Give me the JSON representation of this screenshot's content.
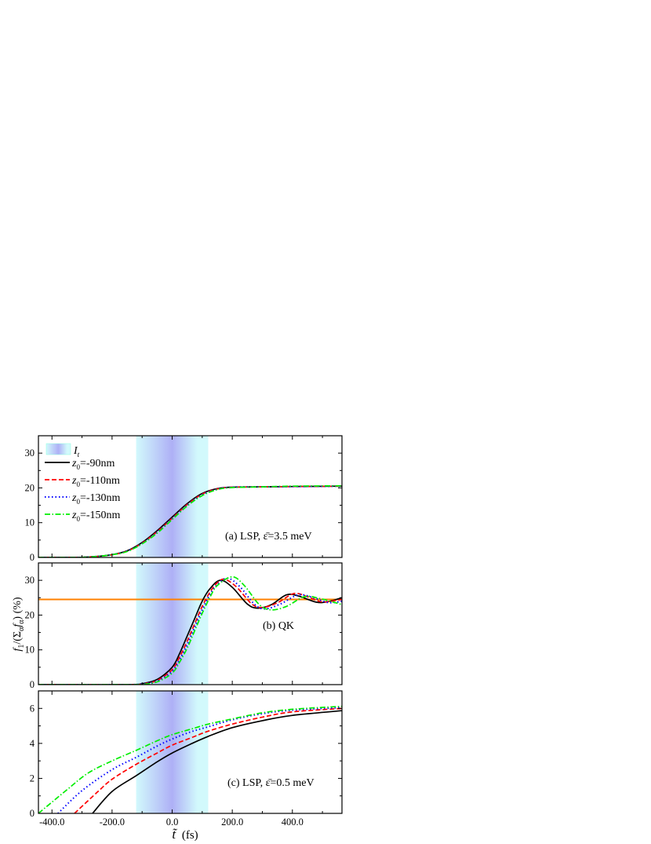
{
  "chart_data": [
    {
      "panel": "a",
      "type": "line",
      "annotation": "(a) LSP, ε̄=3.5 meV",
      "xlim": [
        -445,
        565
      ],
      "ylim": [
        0,
        35
      ],
      "yticks": [
        0,
        10,
        20,
        30
      ],
      "shaded_region": {
        "label": "I",
        "label_sub": "t",
        "from": -120,
        "to": 120,
        "colors": [
          "#d2f9fc",
          "#aeb0f6"
        ]
      },
      "legend": {
        "placement": "top-left"
      },
      "series": [
        {
          "name": "z0=-90nm",
          "name_main": "z",
          "name_sub": "0",
          "name_rest": "=-90nm",
          "color": "#000000",
          "style": "solid",
          "x": [
            -445,
            -350,
            -300,
            -250,
            -200,
            -150,
            -100,
            -50,
            0,
            50,
            100,
            150,
            200,
            300,
            400,
            565
          ],
          "y": [
            0,
            0,
            0.05,
            0.3,
            0.8,
            1.9,
            4.3,
            7.7,
            11.6,
            15.5,
            18.4,
            19.8,
            20.2,
            20.3,
            20.4,
            20.5
          ]
        },
        {
          "name": "z0=-110nm",
          "name_main": "z",
          "name_sub": "0",
          "name_rest": "=-110nm",
          "color": "#ff0000",
          "style": "dashed",
          "x": [
            -445,
            -350,
            -300,
            -250,
            -200,
            -150,
            -100,
            -50,
            0,
            50,
            100,
            150,
            200,
            300,
            400,
            565
          ],
          "y": [
            0,
            0,
            0.05,
            0.3,
            0.8,
            1.8,
            4.1,
            7.4,
            11.3,
            15.2,
            18.2,
            19.7,
            20.2,
            20.3,
            20.4,
            20.5
          ]
        },
        {
          "name": "z0=-130nm",
          "name_main": "z",
          "name_sub": "0",
          "name_rest": "=-130nm",
          "color": "#0000ff",
          "style": "dotted",
          "x": [
            -445,
            -350,
            -300,
            -250,
            -200,
            -150,
            -100,
            -50,
            0,
            50,
            100,
            150,
            200,
            300,
            400,
            565
          ],
          "y": [
            0,
            0,
            0.05,
            0.3,
            0.8,
            1.8,
            4.0,
            7.2,
            11.1,
            15.0,
            18.0,
            19.6,
            20.2,
            20.3,
            20.4,
            20.5
          ]
        },
        {
          "name": "z0=-150nm",
          "name_main": "z",
          "name_sub": "0",
          "name_rest": "=-150nm",
          "color": "#00ee00",
          "style": "dash-dot",
          "x": [
            -445,
            -350,
            -300,
            -250,
            -200,
            -150,
            -100,
            -50,
            0,
            50,
            100,
            150,
            200,
            300,
            400,
            565
          ],
          "y": [
            0,
            0,
            0.05,
            0.3,
            0.8,
            1.7,
            3.9,
            7.0,
            10.9,
            14.8,
            17.8,
            19.5,
            20.1,
            20.3,
            20.5,
            20.6
          ]
        }
      ]
    },
    {
      "panel": "b",
      "type": "line",
      "annotation": "(b) QK",
      "xlim": [
        -445,
        565
      ],
      "ylim": [
        0,
        35
      ],
      "yticks": [
        0,
        10,
        20,
        30
      ],
      "ylabel_parts": [
        "f",
        "1",
        "/(Σ",
        "α",
        "f",
        "α",
        ") (%)"
      ],
      "shaded_region": {
        "from": -120,
        "to": 120
      },
      "reference_line": {
        "y": 24.5,
        "color": "#ff8000"
      },
      "series": [
        {
          "name": "z0=-90nm",
          "color": "#000000",
          "style": "solid",
          "x": [
            -445,
            -150,
            -100,
            -50,
            0,
            25,
            50,
            75,
            100,
            125,
            160,
            200,
            250,
            285,
            330,
            380,
            420,
            480,
            520,
            565
          ],
          "y": [
            0,
            0,
            0.3,
            1.5,
            5,
            9,
            14,
            19,
            24,
            27.5,
            30,
            28,
            23.2,
            22,
            23,
            25.8,
            25.5,
            23.7,
            23.9,
            25
          ]
        },
        {
          "name": "z0=-110nm",
          "color": "#ff0000",
          "style": "dashed",
          "x": [
            -445,
            -150,
            -100,
            -50,
            0,
            25,
            50,
            75,
            100,
            125,
            150,
            175,
            215,
            265,
            300,
            350,
            405,
            450,
            500,
            565
          ],
          "y": [
            0,
            0,
            0.2,
            1.2,
            4.3,
            8,
            12.5,
            17.5,
            22.5,
            26.5,
            29.3,
            30.3,
            28,
            23.2,
            22.2,
            23.5,
            26.2,
            25.3,
            23.8,
            24.5
          ]
        },
        {
          "name": "z0=-130nm",
          "color": "#0000ff",
          "style": "dotted",
          "x": [
            -445,
            -150,
            -100,
            -50,
            0,
            25,
            50,
            75,
            100,
            125,
            150,
            185,
            225,
            275,
            310,
            360,
            420,
            470,
            520,
            565
          ],
          "y": [
            0,
            0,
            0.2,
            1,
            3.8,
            7.2,
            11.5,
            16.5,
            21.5,
            25.8,
            28.8,
            30.6,
            28.2,
            23,
            21.8,
            23.2,
            25.8,
            25,
            23.6,
            24
          ]
        },
        {
          "name": "z0=-150nm",
          "color": "#00ee00",
          "style": "dash-dot",
          "x": [
            -445,
            -150,
            -100,
            -50,
            0,
            25,
            50,
            75,
            100,
            125,
            150,
            200,
            240,
            290,
            330,
            380,
            440,
            490,
            565
          ],
          "y": [
            0,
            0,
            0.1,
            0.8,
            3.3,
            6.5,
            10.5,
            15.5,
            20.5,
            25,
            28.5,
            31,
            28.5,
            23,
            21.5,
            22.5,
            25.3,
            24.8,
            23
          ]
        }
      ]
    },
    {
      "panel": "c",
      "type": "line",
      "annotation": "(c) LSP, ε̄=0.5 meV",
      "xlim": [
        -445,
        565
      ],
      "ylim": [
        0,
        7
      ],
      "yticks": [
        0,
        2,
        4,
        6
      ],
      "xticks": [
        -400,
        -200,
        0,
        200,
        400
      ],
      "xtick_labels": [
        "-400.0",
        "-200.0",
        "0.0",
        "200.0",
        "400.0"
      ],
      "xlabel_main": "t̃",
      "xlabel_unit": "(fs)",
      "shaded_region": {
        "from": -120,
        "to": 120
      },
      "series": [
        {
          "name": "z0=-90nm",
          "color": "#000000",
          "style": "solid",
          "x": [
            -265,
            -200,
            -120,
            -50,
            0,
            60,
            120,
            200,
            300,
            400,
            565
          ],
          "y": [
            0,
            1.25,
            2.15,
            2.95,
            3.45,
            3.95,
            4.4,
            4.9,
            5.3,
            5.6,
            5.87
          ]
        },
        {
          "name": "z0=-110nm",
          "color": "#ff0000",
          "style": "dashed",
          "x": [
            -325,
            -250,
            -200,
            -120,
            -50,
            0,
            60,
            120,
            200,
            300,
            400,
            565
          ],
          "y": [
            0,
            1.2,
            1.95,
            2.8,
            3.45,
            3.9,
            4.3,
            4.7,
            5.1,
            5.5,
            5.8,
            6.0
          ]
        },
        {
          "name": "z0=-130nm",
          "color": "#0000ff",
          "style": "dotted",
          "x": [
            -380,
            -300,
            -200,
            -120,
            -50,
            0,
            60,
            120,
            200,
            300,
            400,
            565
          ],
          "y": [
            0,
            1.3,
            2.5,
            3.2,
            3.85,
            4.25,
            4.65,
            4.95,
            5.35,
            5.7,
            5.9,
            6.05
          ]
        },
        {
          "name": "z0=-150nm",
          "color": "#00ee00",
          "style": "dash-dot",
          "x": [
            -445,
            -350,
            -280,
            -200,
            -120,
            -50,
            0,
            60,
            120,
            200,
            300,
            400,
            565
          ],
          "y": [
            0,
            1.35,
            2.3,
            3.0,
            3.6,
            4.15,
            4.5,
            4.8,
            5.1,
            5.4,
            5.75,
            5.95,
            6.12
          ]
        }
      ]
    }
  ]
}
